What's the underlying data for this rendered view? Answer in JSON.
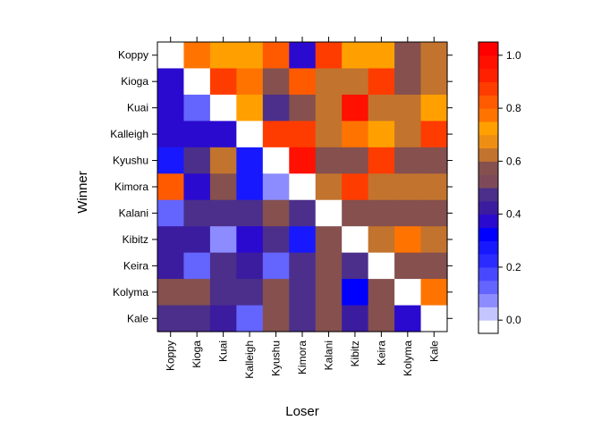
{
  "chart_data": {
    "type": "heatmap",
    "title": "",
    "xlabel": "Loser",
    "ylabel": "Winner",
    "x_categories": [
      "Koppy",
      "Kioga",
      "Kuai",
      "Kalleigh",
      "Kyushu",
      "Kimora",
      "Kalani",
      "Kibitz",
      "Keira",
      "Kolyma",
      "Kale"
    ],
    "y_categories": [
      "Koppy",
      "Kioga",
      "Kuai",
      "Kalleigh",
      "Kyushu",
      "Kimora",
      "Kalani",
      "Kibitz",
      "Keira",
      "Kolyma",
      "Kale"
    ],
    "values": [
      [
        null,
        0.75,
        0.7,
        0.7,
        0.8,
        0.35,
        0.85,
        0.7,
        0.7,
        0.55,
        0.6
      ],
      [
        0.35,
        null,
        0.85,
        0.75,
        0.55,
        0.8,
        0.6,
        0.6,
        0.85,
        0.55,
        0.6
      ],
      [
        0.35,
        0.1,
        null,
        0.7,
        0.45,
        0.55,
        0.6,
        0.95,
        0.6,
        0.6,
        0.7
      ],
      [
        0.35,
        0.35,
        0.35,
        null,
        0.85,
        0.85,
        0.6,
        0.75,
        0.7,
        0.6,
        0.85
      ],
      [
        0.25,
        0.45,
        0.6,
        0.25,
        null,
        0.95,
        0.55,
        0.55,
        0.85,
        0.55,
        0.55
      ],
      [
        0.8,
        0.35,
        0.55,
        0.25,
        0.05,
        null,
        0.6,
        0.85,
        0.6,
        0.6,
        0.6
      ],
      [
        0.1,
        0.45,
        0.45,
        0.45,
        0.55,
        0.45,
        null,
        0.55,
        0.55,
        0.55,
        0.55
      ],
      [
        0.4,
        0.4,
        0.05,
        0.35,
        0.45,
        0.25,
        0.55,
        null,
        0.6,
        0.75,
        0.6
      ],
      [
        0.4,
        0.1,
        0.45,
        0.4,
        0.1,
        0.45,
        0.55,
        0.45,
        null,
        0.55,
        0.55
      ],
      [
        0.55,
        0.55,
        0.45,
        0.45,
        0.55,
        0.45,
        0.55,
        0.3,
        0.55,
        null,
        0.75
      ],
      [
        0.45,
        0.45,
        0.4,
        0.1,
        0.55,
        0.45,
        0.55,
        0.4,
        0.55,
        0.35,
        null
      ]
    ],
    "colorbar": {
      "range": [
        -0.05,
        1.05
      ],
      "ticks": [
        0.0,
        0.2,
        0.4,
        0.6,
        0.8,
        1.0
      ],
      "tick_labels": [
        "0.0",
        "0.2",
        "0.4",
        "0.6",
        "0.8",
        "1.0"
      ],
      "bins": [
        {
          "from": -0.05,
          "to": 0.0,
          "color": "#ffffff"
        },
        {
          "from": 0.0,
          "to": 0.05,
          "color": "#c4c4ff"
        },
        {
          "from": 0.05,
          "to": 0.1,
          "color": "#8c8cff"
        },
        {
          "from": 0.1,
          "to": 0.15,
          "color": "#6464ff"
        },
        {
          "from": 0.15,
          "to": 0.2,
          "color": "#4848ff"
        },
        {
          "from": 0.2,
          "to": 0.25,
          "color": "#2b2bff"
        },
        {
          "from": 0.25,
          "to": 0.3,
          "color": "#1818ff"
        },
        {
          "from": 0.3,
          "to": 0.35,
          "color": "#0000ff"
        },
        {
          "from": 0.35,
          "to": 0.4,
          "color": "#2b0acf"
        },
        {
          "from": 0.4,
          "to": 0.45,
          "color": "#3c1c9e"
        },
        {
          "from": 0.45,
          "to": 0.5,
          "color": "#4b2f8a"
        },
        {
          "from": 0.5,
          "to": 0.55,
          "color": "#7e4a5a"
        },
        {
          "from": 0.55,
          "to": 0.6,
          "color": "#85504e"
        },
        {
          "from": 0.6,
          "to": 0.65,
          "color": "#c2732e"
        },
        {
          "from": 0.65,
          "to": 0.7,
          "color": "#ee8f14"
        },
        {
          "from": 0.7,
          "to": 0.75,
          "color": "#ffa000"
        },
        {
          "from": 0.75,
          "to": 0.8,
          "color": "#ff7300"
        },
        {
          "from": 0.8,
          "to": 0.85,
          "color": "#ff5a00"
        },
        {
          "from": 0.85,
          "to": 0.9,
          "color": "#ff3c00"
        },
        {
          "from": 0.9,
          "to": 0.95,
          "color": "#ff2000"
        },
        {
          "from": 0.95,
          "to": 1.0,
          "color": "#ff1000"
        },
        {
          "from": 1.0,
          "to": 1.05,
          "color": "#ff0000"
        }
      ]
    },
    "diagonal_color": "#ffffff",
    "grid": false,
    "legend": "right"
  }
}
